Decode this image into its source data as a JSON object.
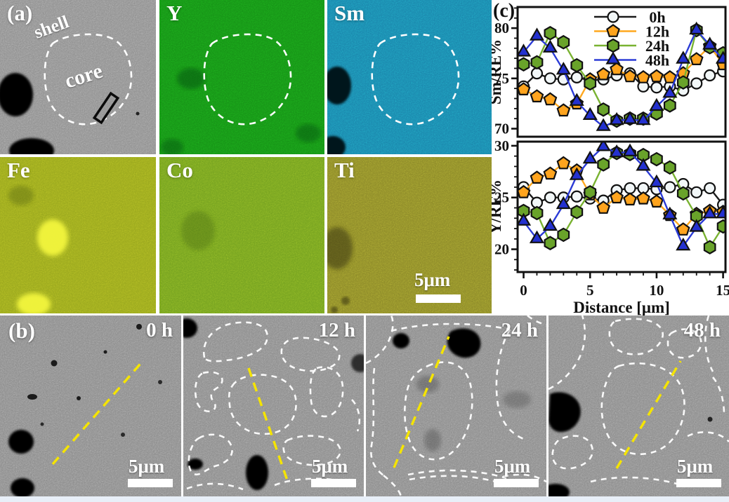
{
  "panel_a": {
    "label": "(a)",
    "annotations": {
      "shell": "shell",
      "core": "core"
    },
    "maps": {
      "sem": {
        "color": "#8f8f8f"
      },
      "y": {
        "label": "Y",
        "color": "#169016"
      },
      "sm": {
        "label": "Sm",
        "color": "#1a84ab"
      },
      "fe": {
        "label": "Fe",
        "color": "#98a61d"
      },
      "co": {
        "label": "Co",
        "color": "#73a01f"
      },
      "ti": {
        "label": "Ti",
        "color": "#8b8828"
      }
    },
    "scalebar": "5μm"
  },
  "panel_b": {
    "label": "(b)",
    "frames": [
      {
        "time": "0 h"
      },
      {
        "time": "12 h"
      },
      {
        "time": "24 h"
      },
      {
        "time": "48 h"
      }
    ],
    "scalebar": "5μm",
    "colors": {
      "background": "#8b8b8b",
      "grain_outline": "#ffffff",
      "line_profile": "#f5e400"
    }
  },
  "panel_c": {
    "label": "(c)"
  },
  "chart_data": [
    {
      "type": "line",
      "ylabel": "Sm/RE%",
      "yticks": [
        70,
        75,
        80
      ],
      "ylim": [
        69.2,
        82.1
      ],
      "xlim": [
        -0.45,
        15.18
      ],
      "legend": true,
      "legend_position": "top-right-inside",
      "x": [
        0,
        1,
        2,
        3,
        4,
        5,
        6,
        7,
        8,
        9,
        10,
        11,
        12,
        13,
        14,
        15
      ],
      "series": [
        {
          "name": "0h",
          "marker": "circle",
          "color": "#1a1a1a",
          "fill": "#f2f7f8",
          "values": [
            74.2,
            75.5,
            75.0,
            74.9,
            75.1,
            74.8,
            74.9,
            75.3,
            75.5,
            74.2,
            74.1,
            74.2,
            73.8,
            74.5,
            75.3,
            75.7
          ]
        },
        {
          "name": "12h",
          "marker": "pentagon",
          "color": "#ffa81f",
          "fill": "#ffa41e",
          "values": [
            73.9,
            73.2,
            72.9,
            71.8,
            72.5,
            74.9,
            75.4,
            75.9,
            75.2,
            75.1,
            75.2,
            75.1,
            75.5,
            76.9,
            78.2,
            76.4
          ]
        },
        {
          "name": "24h",
          "marker": "hexagon",
          "color": "#79b231",
          "fill": "#69a32a",
          "values": [
            76.4,
            76.6,
            79.5,
            78.6,
            76.3,
            74.5,
            71.9,
            70.8,
            71.0,
            71.0,
            71.5,
            72.3,
            74.6,
            79.8,
            78.1,
            77.5
          ]
        },
        {
          "name": "48h",
          "marker": "triangle",
          "color": "#2b3bd6",
          "fill": "#2431cf",
          "values": [
            77.6,
            79.2,
            78.0,
            75.8,
            72.7,
            71.3,
            70.2,
            70.8,
            70.9,
            70.8,
            72.2,
            73.5,
            76.9,
            79.8,
            78.3,
            76.9
          ]
        }
      ]
    },
    {
      "type": "line",
      "ylabel": "Y/RE%",
      "xlabel": "Distance [μm]",
      "yticks": [
        20,
        25,
        30
      ],
      "xticks": [
        0,
        5,
        10,
        15
      ],
      "ylim": [
        17.8,
        30.4
      ],
      "xlim": [
        -0.45,
        15.18
      ],
      "x": [
        0,
        1,
        2,
        3,
        4,
        5,
        6,
        7,
        8,
        9,
        10,
        11,
        12,
        13,
        14,
        15
      ],
      "series": [
        {
          "name": "0h",
          "marker": "circle",
          "color": "#1a1a1a",
          "fill": "#f2f7f8",
          "values": [
            26.0,
            24.5,
            25.0,
            25.0,
            25.1,
            24.9,
            24.7,
            25.7,
            25.9,
            25.9,
            25.8,
            26.0,
            26.3,
            25.5,
            25.9,
            24.3
          ]
        },
        {
          "name": "12h",
          "marker": "pentagon",
          "color": "#ffa81f",
          "fill": "#ffa41e",
          "values": [
            25.5,
            26.9,
            27.3,
            28.3,
            27.6,
            25.3,
            24.0,
            25.0,
            24.8,
            24.9,
            24.6,
            23.3,
            21.9,
            23.4,
            23.7,
            23.6
          ]
        },
        {
          "name": "24h",
          "marker": "hexagon",
          "color": "#79b231",
          "fill": "#69a32a",
          "values": [
            23.7,
            23.5,
            20.6,
            21.4,
            23.6,
            25.5,
            28.2,
            29.3,
            29.2,
            29.1,
            28.7,
            27.9,
            25.4,
            23.2,
            20.2,
            22.2
          ]
        },
        {
          "name": "48h",
          "marker": "triangle",
          "color": "#2b3bd6",
          "fill": "#2431cf",
          "values": [
            22.7,
            21.0,
            22.2,
            24.3,
            27.1,
            28.7,
            29.9,
            29.3,
            29.4,
            28.0,
            26.4,
            23.3,
            20.3,
            22.1,
            23.4,
            23.4
          ]
        }
      ]
    }
  ]
}
